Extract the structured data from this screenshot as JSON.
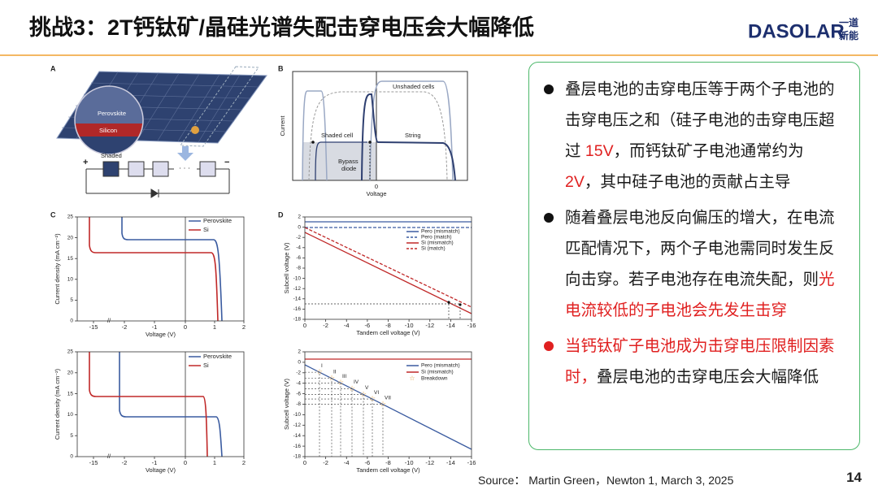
{
  "header": {
    "title": "挑战3：2T钙钛矿/晶硅光谱失配击穿电压会大幅降低",
    "logo": "DASOLAR",
    "logo_cn_top": "一道",
    "logo_cn_bottom": "新能"
  },
  "figure": {
    "panel_a": {
      "letter": "A",
      "perovskite": "Perovskite",
      "silicon": "Silicon",
      "shaded": "Shaded",
      "plus": "+",
      "minus": "−"
    },
    "panel_b": {
      "letter": "B",
      "unshaded": "Unshaded cells",
      "shaded_cell": "Shaded cell",
      "string": "String",
      "bypass": "Bypass",
      "diode": "diode",
      "ylabel": "Current",
      "xlabel": "Voltage",
      "zero": "0"
    },
    "panel_c": {
      "letter": "C",
      "ylabel": "Current density (mA cm⁻²)",
      "xlabel": "Voltage (V)",
      "xticks": [
        -15,
        -2,
        -1,
        0,
        1,
        2
      ],
      "yticks": [
        0,
        5,
        10,
        15,
        20,
        25
      ],
      "legend": [
        "Perovskite",
        "Si"
      ]
    },
    "panel_d": {
      "letter": "D",
      "ylabel": "Subcell voltage (V)",
      "xlabel": "Tandem cell voltage (V)",
      "xticks": [
        0,
        -2,
        -4,
        -6,
        -8,
        -10,
        -12,
        -14,
        -16
      ],
      "yticks": [
        2,
        0,
        -2,
        -4,
        -6,
        -8,
        -10,
        -12,
        -14,
        -16,
        -18
      ],
      "legend": [
        "Pero (mismatch)",
        "Pero (match)",
        "Si (mismatch)",
        "Si (match)"
      ]
    },
    "panel_e": {
      "ylabel": "Current density (mA cm⁻²)",
      "xlabel": "Voltage (V)",
      "xticks": [
        -15,
        -2,
        -1,
        0,
        1,
        2
      ],
      "yticks": [
        0,
        5,
        10,
        15,
        20,
        25
      ],
      "legend": [
        "Perovskite",
        "Si"
      ]
    },
    "panel_f": {
      "ylabel": "Subcell voltage (V)",
      "xlabel": "Tandem cell voltage (V)",
      "xticks": [
        0,
        -2,
        -4,
        -6,
        -8,
        -10,
        -12,
        -14,
        -16
      ],
      "yticks": [
        2,
        0,
        -2,
        -4,
        -6,
        -8,
        -10,
        -12,
        -14,
        -16,
        -18
      ],
      "legend": [
        "Pero (mismatch)",
        "Si (mismatch)",
        "Breakdown"
      ],
      "numerals": [
        "I",
        "II",
        "III",
        "IV",
        "V",
        "VI",
        "VII"
      ]
    }
  },
  "bullets": [
    {
      "dot_color": "#111111",
      "segments": [
        {
          "text": "叠层电池的击穿电压等于两个子电池的击穿电压之和（硅子电池的击穿电压超过 ",
          "color": "#1a1a1a"
        },
        {
          "text": "15V",
          "color": "#e02020"
        },
        {
          "text": "，而钙钛矿子电池通常约为 ",
          "color": "#1a1a1a"
        },
        {
          "text": "2V",
          "color": "#e02020"
        },
        {
          "text": "，其中硅子电池的贡献占主导",
          "color": "#1a1a1a"
        }
      ]
    },
    {
      "dot_color": "#111111",
      "segments": [
        {
          "text": "随着叠层电池反向偏压的增大，在电流匹配情况下，两个子电池需同时发生反向击穿。若子电池存在电流失配，则",
          "color": "#1a1a1a"
        },
        {
          "text": "光电流较低的子电池会先发生击穿",
          "color": "#e02020"
        }
      ]
    },
    {
      "dot_color": "#e02020",
      "segments": [
        {
          "text": "当钙钛矿子电池成为击穿电压限制因素时，",
          "color": "#e02020"
        },
        {
          "text": "叠层电池的击穿电压会大幅降低",
          "color": "#1a1a1a"
        }
      ]
    }
  ],
  "footer": {
    "source": "Source：  Martin Green，Newton 1, March 3, 2025",
    "page": "14"
  }
}
